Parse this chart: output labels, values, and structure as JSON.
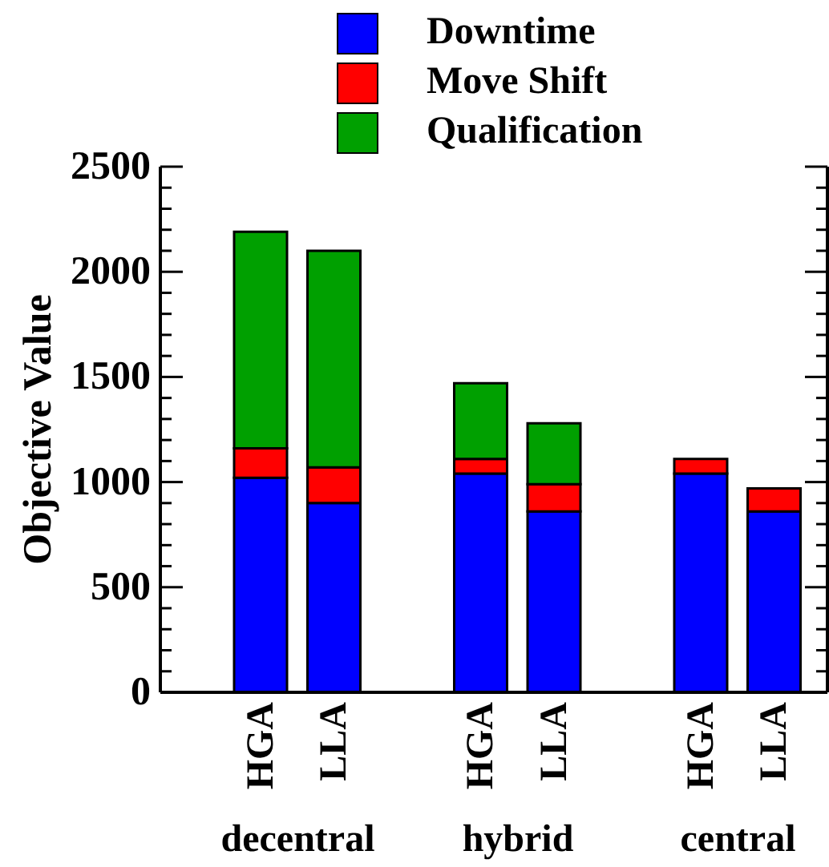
{
  "chart_data": {
    "type": "bar",
    "ylabel": "Objective Value",
    "categories": [
      "HGA",
      "LLA",
      null,
      "HGA",
      "LLA",
      null,
      "HGA",
      "LLA"
    ],
    "series": [
      {
        "name": "Downtime",
        "color": "#0000ff",
        "values": [
          1020,
          900,
          null,
          1040,
          860,
          null,
          1040,
          860
        ]
      },
      {
        "name": "Move Shift",
        "color": "#ff0000",
        "values": [
          140,
          170,
          null,
          70,
          130,
          null,
          70,
          110
        ]
      },
      {
        "name": "Qualification",
        "color": "#00a000",
        "values": [
          1030,
          1030,
          null,
          360,
          290,
          null,
          0,
          0
        ]
      }
    ],
    "stacked": true,
    "ylim": [
      0,
      2500
    ],
    "yticks": [
      0,
      {
        "value": 100,
        "label": null
      },
      {
        "value": 200,
        "label": null
      },
      {
        "value": 300,
        "label": null
      },
      {
        "value": 400,
        "label": null
      },
      500,
      {
        "value": 600,
        "label": null
      },
      {
        "value": 700,
        "label": null
      },
      {
        "value": 800,
        "label": null
      },
      {
        "value": 900,
        "label": null
      },
      1000,
      {
        "value": 1100,
        "label": null
      },
      {
        "value": 1200,
        "label": null
      },
      {
        "value": 1300,
        "label": null
      },
      {
        "value": 1400,
        "label": null
      },
      1500,
      {
        "value": 1600,
        "label": null
      },
      {
        "value": 1700,
        "label": null
      },
      {
        "value": 1800,
        "label": null
      },
      {
        "value": 1900,
        "label": null
      },
      2000,
      {
        "value": 2100,
        "label": null
      },
      {
        "value": 2200,
        "label": null
      },
      {
        "value": 2300,
        "label": null
      },
      {
        "value": 2400,
        "label": null
      },
      2500
    ],
    "legend": "top",
    "grid": false,
    "annotations": [
      "decentral",
      "hybrid",
      "central"
    ]
  }
}
